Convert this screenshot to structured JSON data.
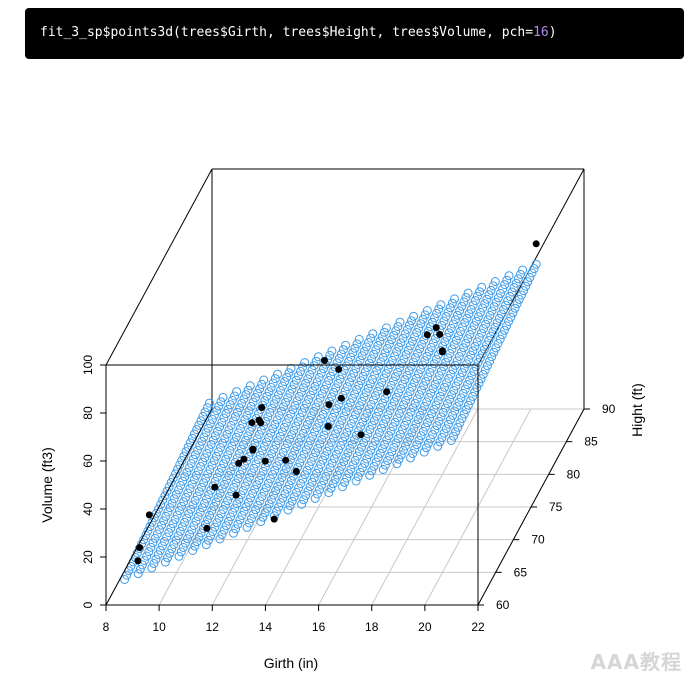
{
  "code": {
    "prefix": "fit_3_sp$points3d(trees$Girth, trees$Height, trees$Volume, pch=",
    "pch_value": "16",
    "suffix": ")"
  },
  "colors": {
    "code_background": "#000000",
    "plane_circles": "#3d9be9",
    "points": "#000000",
    "grid": "#c8c8c8"
  },
  "chart_data": {
    "type": "scatter",
    "subtype": "3d-scatter-with-regression-plane",
    "xlabel": "Girth (in)",
    "ylabel": "Hight (ft)",
    "zlabel": "Volume (ft3)",
    "xlim": [
      8,
      22
    ],
    "ylim": [
      60,
      90
    ],
    "zlim": [
      0,
      100
    ],
    "x_ticks": [
      "8",
      "10",
      "12",
      "14",
      "16",
      "18",
      "20",
      "22"
    ],
    "y_ticks": [
      "60",
      "65",
      "70",
      "75",
      "80",
      "85",
      "90"
    ],
    "z_ticks": [
      "0",
      "20",
      "40",
      "60",
      "80",
      "100"
    ],
    "grid": true,
    "plane": {
      "symbol": "open-circle",
      "color": "#3d9be9"
    },
    "points": [
      {
        "girth": 8.3,
        "height": 70,
        "volume": 10.3
      },
      {
        "girth": 8.6,
        "height": 65,
        "volume": 10.3
      },
      {
        "girth": 8.8,
        "height": 63,
        "volume": 10.2
      },
      {
        "girth": 10.5,
        "height": 72,
        "volume": 16.4
      },
      {
        "girth": 10.7,
        "height": 81,
        "volume": 18.8
      },
      {
        "girth": 10.8,
        "height": 83,
        "volume": 19.7
      },
      {
        "girth": 11.0,
        "height": 66,
        "volume": 15.6
      },
      {
        "girth": 11.0,
        "height": 75,
        "volume": 18.2
      },
      {
        "girth": 11.1,
        "height": 80,
        "volume": 22.6
      },
      {
        "girth": 11.2,
        "height": 75,
        "volume": 19.9
      },
      {
        "girth": 11.3,
        "height": 79,
        "volume": 24.2
      },
      {
        "girth": 11.4,
        "height": 76,
        "volume": 21.0
      },
      {
        "girth": 11.4,
        "height": 76,
        "volume": 21.4
      },
      {
        "girth": 11.7,
        "height": 69,
        "volume": 21.3
      },
      {
        "girth": 12.0,
        "height": 75,
        "volume": 19.1
      },
      {
        "girth": 12.9,
        "height": 74,
        "volume": 22.2
      },
      {
        "girth": 12.9,
        "height": 85,
        "volume": 33.8
      },
      {
        "girth": 13.3,
        "height": 86,
        "volume": 27.4
      },
      {
        "girth": 13.7,
        "height": 71,
        "volume": 25.7
      },
      {
        "girth": 13.8,
        "height": 64,
        "volume": 24.9
      },
      {
        "girth": 14.0,
        "height": 78,
        "volume": 34.5
      },
      {
        "girth": 14.2,
        "height": 80,
        "volume": 31.7
      },
      {
        "girth": 14.5,
        "height": 74,
        "volume": 36.3
      },
      {
        "girth": 16.0,
        "height": 72,
        "volume": 38.3
      },
      {
        "girth": 16.3,
        "height": 77,
        "volume": 42.6
      },
      {
        "girth": 17.3,
        "height": 81,
        "volume": 55.4
      },
      {
        "girth": 17.5,
        "height": 82,
        "volume": 55.7
      },
      {
        "girth": 17.9,
        "height": 80,
        "volume": 58.3
      },
      {
        "girth": 18.0,
        "height": 80,
        "volume": 51.5
      },
      {
        "girth": 18.0,
        "height": 80,
        "volume": 51.0
      },
      {
        "girth": 20.6,
        "height": 87,
        "volume": 77.0
      }
    ]
  },
  "watermark": "AAA教程"
}
